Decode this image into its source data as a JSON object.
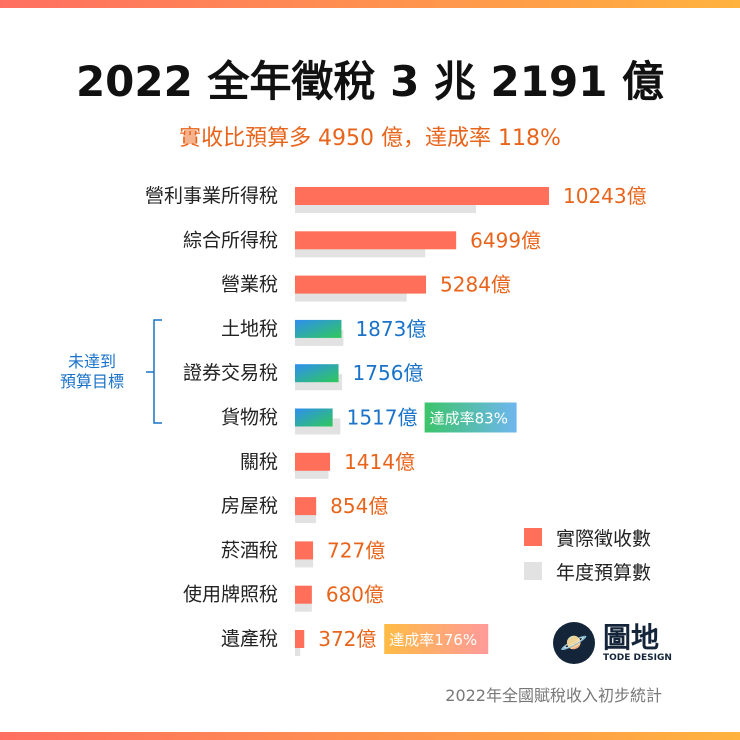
{
  "title": "2022 全年徵稅 3 兆 2191 億",
  "subtitle": "實收比預算多 4950 億，達成率 118%",
  "bracket_label": [
    "未達到",
    "預算目標"
  ],
  "legend": {
    "actual": "實際徵收數",
    "budget": "年度預算數"
  },
  "logo": {
    "name": "圖地",
    "sub": "TODE DESIGN"
  },
  "source": "2022年全國賦稅收入初步統計",
  "colors": {
    "actual": "#ff6f5a",
    "budget": "#e2e2e2",
    "below": "#2f8de0",
    "orange_text": "#e8641b",
    "blue_text": "#1a73c9"
  },
  "chart_data": {
    "type": "bar",
    "orientation": "horizontal",
    "unit": "億",
    "categories": [
      "營利事業所得稅",
      "綜合所得稅",
      "營業稅",
      "土地稅",
      "證券交易稅",
      "貨物稅",
      "關稅",
      "房屋稅",
      "菸酒稅",
      "使用牌照稅",
      "遺產稅"
    ],
    "series": [
      {
        "name": "實際徵收數",
        "values": [
          10243,
          6499,
          5284,
          1873,
          1756,
          1517,
          1414,
          854,
          727,
          680,
          372
        ],
        "labels": [
          "10243億",
          "6499億",
          "5284億",
          "1873億",
          "1756億",
          "1517億",
          "1414億",
          "854億",
          "727億",
          "680億",
          "372億"
        ]
      },
      {
        "name": "年度預算數",
        "values": [
          7300,
          5250,
          4500,
          1950,
          1900,
          1830,
          1350,
          850,
          730,
          680,
          210
        ]
      }
    ],
    "below_target": [
      3,
      4,
      5
    ],
    "annotations": [
      {
        "category": "貨物稅",
        "text": "達成率83%"
      },
      {
        "category": "遺產稅",
        "text": "達成率176%"
      }
    ],
    "legend_position": "right"
  }
}
